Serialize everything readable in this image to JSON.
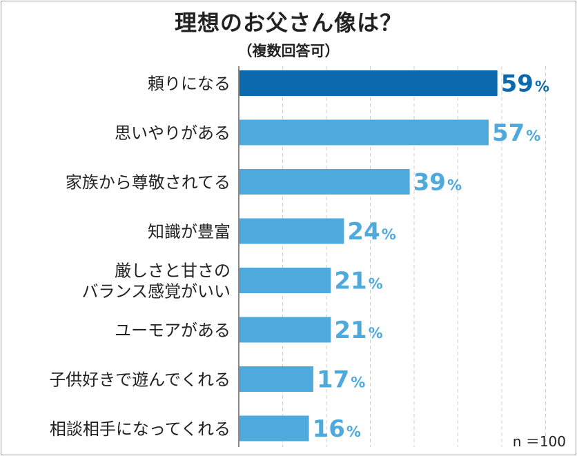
{
  "title": "理想のお父さん像は？",
  "subtitle": "（複数回答可）",
  "note": "n ＝100",
  "colors": {
    "highlight": "#0a6aad",
    "bar": "#4ea9dd",
    "axis": "#888888",
    "grid": "#cccccc"
  },
  "chart_data": {
    "type": "bar",
    "orientation": "horizontal",
    "categories": [
      [
        "頼りになる"
      ],
      [
        "思いやりがある"
      ],
      [
        "家族から尊敬されてる"
      ],
      [
        "知識が豊富"
      ],
      [
        "厳しさと甘さの",
        "バランス感覚がいい"
      ],
      [
        "ユーモアがある"
      ],
      [
        "子供好きで遊んでくれる"
      ],
      [
        "相談相手になってくれる"
      ]
    ],
    "values": [
      59,
      57,
      39,
      24,
      21,
      21,
      17,
      16
    ],
    "unit": "%",
    "xlim": [
      0,
      80
    ],
    "grid": true,
    "highlight_index": 0
  }
}
